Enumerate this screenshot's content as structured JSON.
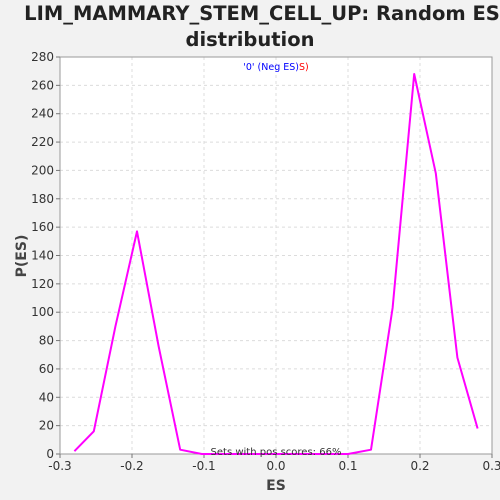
{
  "chart_data": {
    "type": "line",
    "title_line1": "LIM_MAMMARY_STEM_CELL_UP: Random ES",
    "title_line2": "distribution",
    "xlabel": "ES",
    "ylabel": "P(ES)",
    "xlim": [
      -0.3,
      0.3
    ],
    "ylim": [
      0,
      280
    ],
    "x_ticks": [
      "-0.3",
      "-0.2",
      "-0.1",
      "0.0",
      "0.1",
      "0.2",
      "0.3"
    ],
    "y_ticks": [
      "0",
      "20",
      "40",
      "60",
      "80",
      "100",
      "120",
      "140",
      "160",
      "180",
      "200",
      "220",
      "240",
      "260",
      "280"
    ],
    "grid": true,
    "legend": {
      "placement": "top-center",
      "parts": [
        {
          "text": "'0' (Neg ES)",
          "color": "#0000ff"
        },
        {
          "text": "S)",
          "color": "#ff0000"
        }
      ]
    },
    "annotation": "Sets with pos scores: 66%",
    "series": [
      {
        "color": "#ff00ff",
        "x": [
          -0.28,
          -0.253,
          -0.223,
          -0.193,
          -0.163,
          -0.133,
          -0.103,
          0.0,
          0.1,
          0.132,
          0.162,
          0.192,
          0.222,
          0.252,
          0.28
        ],
        "y": [
          2,
          16,
          90,
          157,
          76,
          3,
          0,
          0,
          0,
          3,
          103,
          268,
          198,
          68,
          18
        ]
      }
    ]
  }
}
